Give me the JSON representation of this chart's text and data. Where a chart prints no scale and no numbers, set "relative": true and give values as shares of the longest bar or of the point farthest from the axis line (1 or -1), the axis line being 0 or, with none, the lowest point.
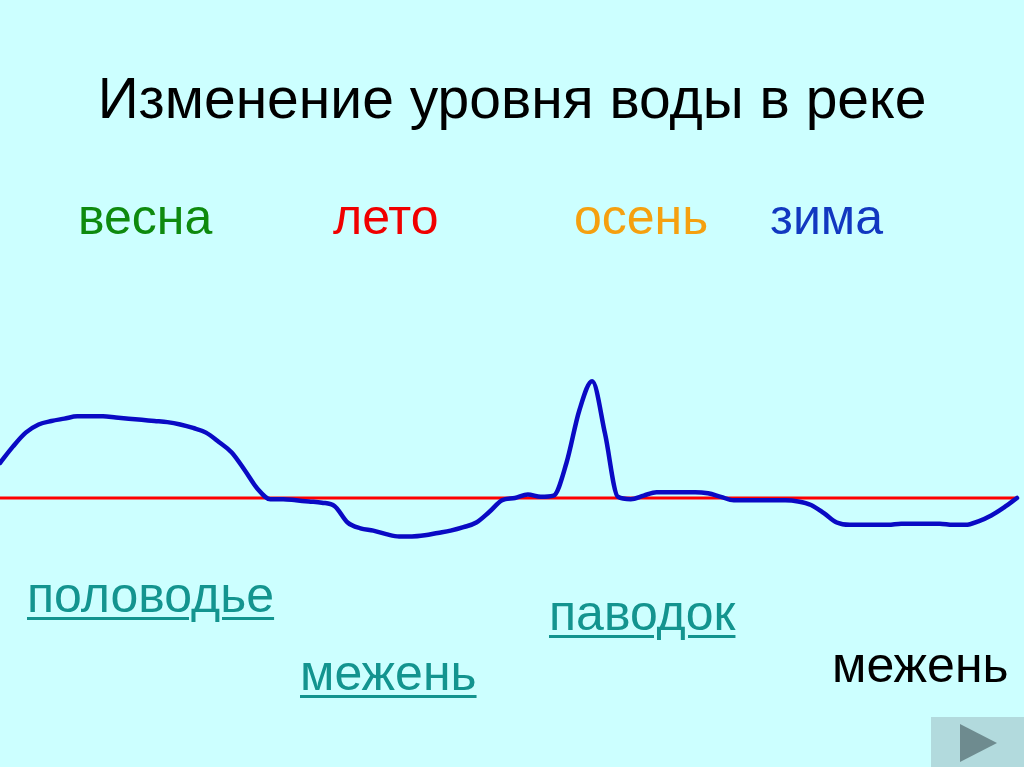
{
  "chart_data": {
    "type": "line",
    "title": "Изменение уровня воды в реке",
    "categories": [
      null,
      null,
      null,
      null,
      null,
      null,
      null,
      null,
      null,
      null,
      null,
      null,
      null,
      null,
      null,
      null,
      null,
      null,
      null,
      null,
      null,
      null,
      null,
      null,
      null,
      null,
      null,
      null,
      null,
      null,
      null,
      null,
      null,
      null,
      null,
      null,
      null,
      null,
      null,
      null,
      null,
      null,
      null,
      null,
      null,
      null,
      null,
      null,
      null,
      null,
      null,
      null,
      null,
      null,
      null,
      null,
      null,
      null,
      null,
      null,
      null,
      null,
      null,
      null,
      null,
      null,
      null,
      null,
      null,
      null,
      null,
      null,
      null,
      null,
      null,
      null,
      null,
      null,
      null,
      null
    ],
    "series": [
      {
        "color": "#0a0ac4",
        "values": [
          0.3,
          0.44,
          0.56,
          0.63,
          0.66,
          0.68,
          0.7,
          0.7,
          0.7,
          0.69,
          0.68,
          0.67,
          0.66,
          0.65,
          0.63,
          0.6,
          0.56,
          0.48,
          0.39,
          0.24,
          0.08,
          -0.01,
          -0.01,
          -0.02,
          -0.03,
          -0.04,
          -0.07,
          -0.21,
          -0.26,
          -0.28,
          -0.31,
          -0.33,
          -0.33,
          -0.32,
          -0.3,
          -0.28,
          -0.25,
          -0.21,
          -0.12,
          -0.02,
          0.0,
          0.03,
          0.01,
          0.02,
          0.3,
          0.75,
          1.0,
          0.55,
          0.01,
          -0.01,
          0.02,
          0.05,
          0.05,
          0.05,
          0.05,
          0.04,
          0.01,
          -0.02,
          -0.02,
          -0.02,
          -0.02,
          -0.02,
          -0.03,
          -0.06,
          -0.13,
          -0.21,
          -0.23,
          -0.23,
          -0.23,
          -0.23,
          -0.22,
          -0.22,
          -0.22,
          -0.22,
          -0.23,
          -0.23,
          -0.2,
          -0.15,
          -0.08,
          0.0
        ]
      }
    ],
    "relative": true,
    "ref_lines": [
      {
        "axis": "y",
        "value": 0,
        "color": "#ff0000"
      }
    ],
    "marker": "none",
    "annotations": [
      "весна",
      "лето",
      "осень",
      "зима",
      "половодье",
      "межень",
      "паводок",
      "межень"
    ]
  }
}
